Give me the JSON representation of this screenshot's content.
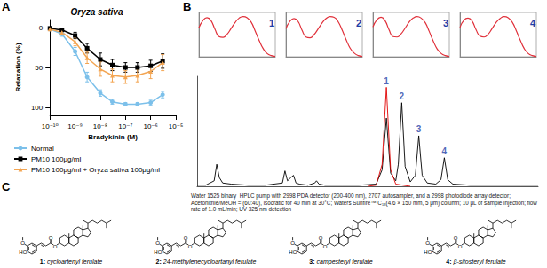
{
  "panels": [
    "A",
    "B",
    "C"
  ],
  "chart_data": [
    {
      "type": "line",
      "title": "Oryza sativa",
      "x_label": "Bradykinin (M)",
      "y_label": "Relaxation (%)",
      "log": "x",
      "grid": false,
      "legend": "lower left",
      "xlim": [
        1e-10,
        1e-05
      ],
      "xticks": [
        {
          "value": 1e-10,
          "label": "10⁻¹⁰"
        },
        {
          "value": 1e-09,
          "label": "10⁻⁹"
        },
        {
          "value": 1e-08,
          "label": "10⁻⁸"
        },
        {
          "value": 1e-07,
          "label": "10⁻⁷"
        },
        {
          "value": 1e-06,
          "label": "10⁻⁶"
        },
        {
          "value": 1e-05,
          "label": "10⁻⁵"
        }
      ],
      "ylim": [
        110,
        -10
      ],
      "yticks": [
        0,
        50,
        100
      ],
      "x": [
        1e-10,
        3e-10,
        1e-09,
        3e-09,
        1e-08,
        3e-08,
        1e-07,
        3e-07,
        1e-06,
        3e-06
      ],
      "series": [
        {
          "name": "Normal",
          "color": "#7cc0ea",
          "marker": "circle",
          "values": [
            2,
            8,
            30,
            62,
            82,
            93,
            96,
            96,
            94,
            84
          ],
          "errors": [
            2,
            3,
            5,
            6,
            4,
            3,
            2,
            2,
            3,
            4
          ]
        },
        {
          "name": "PM10 100μg/ml",
          "color": "#000000",
          "marker": "square",
          "values": [
            1,
            3,
            10,
            26,
            40,
            47,
            50,
            50,
            48,
            42
          ],
          "errors": [
            2,
            2,
            4,
            6,
            8,
            7,
            6,
            6,
            7,
            9
          ]
        },
        {
          "name": "PM10 100μg/ml + Oryza sativa 100μg/ml",
          "color": "#f3a552",
          "marker": "triangle",
          "values": [
            2,
            6,
            18,
            38,
            52,
            60,
            62,
            60,
            55,
            44
          ],
          "errors": [
            2,
            3,
            5,
            7,
            9,
            8,
            8,
            8,
            9,
            10
          ]
        }
      ]
    },
    {
      "type": "line",
      "title": "1",
      "tick_labels": false,
      "xlim": [
        210,
        400
      ],
      "ylim": [
        0,
        1.1
      ],
      "x": [
        210,
        220,
        230,
        240,
        250,
        260,
        270,
        280,
        290,
        300,
        310,
        320,
        330,
        340,
        350,
        360,
        370,
        380,
        390,
        400
      ],
      "series": [
        {
          "color": "#e0303a",
          "values": [
            0.72,
            0.9,
            0.97,
            0.9,
            0.68,
            0.5,
            0.48,
            0.56,
            0.7,
            0.85,
            0.96,
            1.0,
            0.97,
            0.86,
            0.64,
            0.4,
            0.2,
            0.08,
            0.03,
            0.01
          ]
        }
      ]
    },
    {
      "type": "line",
      "title": "2",
      "tick_labels": false,
      "xlim": [
        210,
        400
      ],
      "ylim": [
        0,
        1.1
      ],
      "x": [
        210,
        220,
        230,
        240,
        250,
        260,
        270,
        280,
        290,
        300,
        310,
        320,
        330,
        340,
        350,
        360,
        370,
        380,
        390,
        400
      ],
      "series": [
        {
          "color": "#e0303a",
          "values": [
            0.7,
            0.88,
            0.95,
            0.88,
            0.66,
            0.49,
            0.47,
            0.55,
            0.69,
            0.84,
            0.95,
            1.0,
            0.98,
            0.87,
            0.66,
            0.42,
            0.21,
            0.09,
            0.03,
            0.01
          ]
        }
      ]
    },
    {
      "type": "line",
      "title": "3",
      "tick_labels": false,
      "xlim": [
        210,
        400
      ],
      "ylim": [
        0,
        1.1
      ],
      "x": [
        210,
        220,
        230,
        240,
        250,
        260,
        270,
        280,
        290,
        300,
        310,
        320,
        330,
        340,
        350,
        360,
        370,
        380,
        390,
        400
      ],
      "series": [
        {
          "color": "#e0303a",
          "values": [
            0.74,
            0.92,
            0.98,
            0.9,
            0.67,
            0.5,
            0.49,
            0.57,
            0.71,
            0.86,
            0.96,
            1.0,
            0.96,
            0.85,
            0.63,
            0.39,
            0.19,
            0.08,
            0.03,
            0.01
          ]
        }
      ]
    },
    {
      "type": "line",
      "title": "4",
      "tick_labels": false,
      "xlim": [
        210,
        400
      ],
      "ylim": [
        0,
        1.1
      ],
      "x": [
        210,
        220,
        230,
        240,
        250,
        260,
        270,
        280,
        290,
        300,
        310,
        320,
        330,
        340,
        350,
        360,
        370,
        380,
        390,
        400
      ],
      "series": [
        {
          "color": "#e0303a",
          "values": [
            0.73,
            0.91,
            0.96,
            0.89,
            0.67,
            0.51,
            0.49,
            0.56,
            0.7,
            0.85,
            0.95,
            1.0,
            0.97,
            0.86,
            0.65,
            0.41,
            0.2,
            0.08,
            0.03,
            0.01
          ]
        }
      ]
    },
    {
      "type": "line",
      "tick_labels": false,
      "xlim": [
        0,
        40
      ],
      "ylim": [
        0,
        1
      ],
      "series": [
        {
          "color": "#000000",
          "x": [
            0,
            1,
            2,
            2.3,
            2.6,
            3,
            4,
            6,
            8,
            10,
            10.3,
            10.6,
            11,
            11.3,
            11.6,
            12,
            13,
            13.8,
            14,
            14.3,
            15,
            17,
            19,
            21,
            21.7,
            22.2,
            22.7,
            23.3,
            23.6,
            24.0,
            24.4,
            25,
            25.6,
            26.0,
            26.4,
            27,
            28,
            28.6,
            29.0,
            29.4,
            30,
            32,
            35,
            38,
            40
          ],
          "values": [
            0.01,
            0.01,
            0.05,
            0.2,
            0.08,
            0.03,
            0.02,
            0.01,
            0.01,
            0.03,
            0.14,
            0.05,
            0.08,
            0.1,
            0.03,
            0.02,
            0.01,
            0.03,
            0.05,
            0.02,
            0.01,
            0.01,
            0.01,
            0.02,
            0.15,
            0.62,
            0.12,
            0.05,
            0.2,
            0.76,
            0.18,
            0.04,
            0.1,
            0.46,
            0.1,
            0.03,
            0.02,
            0.06,
            0.26,
            0.06,
            0.02,
            0.01,
            0.01,
            0.01,
            0.01
          ]
        },
        {
          "color": "#e00000",
          "x": [
            20,
            21,
            21.7,
            22.2,
            22.7,
            23.3,
            25
          ],
          "values": [
            0,
            0.01,
            0.2,
            0.9,
            0.15,
            0.02,
            0
          ]
        }
      ],
      "annotations": [
        {
          "x": 22.2,
          "y": 0.9,
          "text": "1"
        },
        {
          "x": 24.0,
          "y": 0.76,
          "text": "2"
        },
        {
          "x": 26.0,
          "y": 0.46,
          "text": "3"
        },
        {
          "x": 29.0,
          "y": 0.26,
          "text": "4"
        }
      ]
    }
  ],
  "caption": "Water 1525 binary  HPLC pump with 2998 PDA detector (200-400 nm), 2707 autosampler, and a 2998 photodiode array detector; Acetonitrile/MeOH = (60:40), isocratic for 40 min at 30°C; Waters Sunfire™ C₁₈(4.6 × 150 mm, 5 μm) column; 10 μL of sample injection; flow rate of 1.0 mL/min; UV 325 nm detection",
  "structures": [
    {
      "number": "1:",
      "name": "cycloartenyl ferulate",
      "atoms": [
        "HO",
        "O",
        "O",
        "O"
      ]
    },
    {
      "number": "2:",
      "name": "24-methylenecycloartanyl ferulate",
      "atoms": [
        "HO",
        "O",
        "O",
        "O"
      ]
    },
    {
      "number": "3:",
      "name": "campesteryl ferulate",
      "atoms": [
        "HO",
        "O",
        "O",
        "O"
      ]
    },
    {
      "number": "4:",
      "name": "β-sitosteryl ferulate",
      "atoms": [
        "HO",
        "O",
        "O",
        "O"
      ]
    }
  ]
}
